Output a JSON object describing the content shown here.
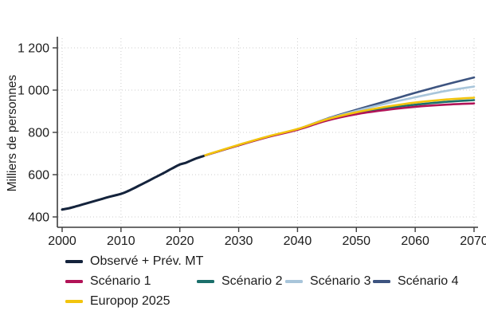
{
  "chart_data": {
    "type": "line",
    "title": "",
    "xlabel": "",
    "ylabel": "Milliers de personnes",
    "grid": true,
    "legend_position": "bottom",
    "xlim": [
      2000,
      2070
    ],
    "ylim": [
      350,
      1240
    ],
    "x_ticks": [
      {
        "value": 2000,
        "label": "2000"
      },
      {
        "value": 2010,
        "label": "2010"
      },
      {
        "value": 2020,
        "label": "2020"
      },
      {
        "value": 2030,
        "label": "2030"
      },
      {
        "value": 2040,
        "label": "2040"
      },
      {
        "value": 2050,
        "label": "2050"
      },
      {
        "value": 2060,
        "label": "2060"
      },
      {
        "value": 2070,
        "label": "2070"
      }
    ],
    "y_ticks": [
      {
        "value": 400,
        "label": "400"
      },
      {
        "value": 600,
        "label": "600"
      },
      {
        "value": 800,
        "label": "800"
      },
      {
        "value": 1000,
        "label": "1 000"
      },
      {
        "value": 1200,
        "label": "1 200"
      }
    ],
    "series": [
      {
        "name": "Observé + Prév. MT",
        "color": "#14233c",
        "stroke_width": 3,
        "x": [
          2000,
          2001,
          2002,
          2003,
          2004,
          2005,
          2006,
          2007,
          2008,
          2009,
          2010,
          2011,
          2012,
          2013,
          2014,
          2015,
          2016,
          2017,
          2018,
          2019,
          2020,
          2021,
          2022,
          2023,
          2024
        ],
        "values": [
          435,
          440,
          447,
          455,
          463,
          471,
          479,
          487,
          495,
          502,
          509,
          520,
          533,
          547,
          561,
          575,
          590,
          604,
          619,
          634,
          648,
          656,
          668,
          679,
          688
        ]
      },
      {
        "name": "Scénario 1",
        "color": "#b11357",
        "stroke_width": 2.6,
        "x": [
          2024,
          2025,
          2030,
          2035,
          2040,
          2045,
          2050,
          2055,
          2060,
          2065,
          2070
        ],
        "values": [
          688,
          697,
          739,
          778,
          812,
          856,
          886,
          906,
          921,
          931,
          937
        ]
      },
      {
        "name": "Scénario 2",
        "color": "#1b6f6b",
        "stroke_width": 2.6,
        "x": [
          2024,
          2025,
          2030,
          2035,
          2040,
          2045,
          2050,
          2055,
          2060,
          2065,
          2070
        ],
        "values": [
          688,
          697,
          739,
          779,
          814,
          859,
          891,
          914,
          931,
          944,
          953
        ]
      },
      {
        "name": "Scénario 3",
        "color": "#a8c5da",
        "stroke_width": 2.6,
        "x": [
          2024,
          2025,
          2030,
          2035,
          2040,
          2045,
          2050,
          2055,
          2060,
          2065,
          2070
        ],
        "values": [
          688,
          697,
          740,
          780,
          815,
          863,
          902,
          936,
          966,
          995,
          1017
        ]
      },
      {
        "name": "Scénario 4",
        "color": "#3d5480",
        "stroke_width": 2.6,
        "x": [
          2024,
          2025,
          2030,
          2035,
          2040,
          2045,
          2050,
          2055,
          2060,
          2065,
          2070
        ],
        "values": [
          688,
          697,
          740,
          780,
          815,
          865,
          907,
          947,
          987,
          1025,
          1060
        ]
      },
      {
        "name": "Europop 2025",
        "color": "#f2c40d",
        "stroke_width": 2.6,
        "x": [
          2024,
          2025,
          2030,
          2035,
          2040,
          2045,
          2050,
          2055,
          2060,
          2065,
          2070
        ],
        "values": [
          688,
          698,
          741,
          781,
          816,
          862,
          895,
          921,
          941,
          955,
          964
        ]
      }
    ]
  },
  "axis": {
    "y_title": "Milliers de personnes"
  },
  "legend": {
    "items": [
      {
        "label": "Observé + Prév. MT",
        "color": "#14233c"
      },
      {
        "label": "Scénario 1",
        "color": "#b11357"
      },
      {
        "label": "Scénario 2",
        "color": "#1b6f6b"
      },
      {
        "label": "Scénario 3",
        "color": "#a8c5da"
      },
      {
        "label": "Scénario 4",
        "color": "#3d5480"
      },
      {
        "label": "Europop 2025",
        "color": "#f2c40d"
      }
    ]
  },
  "colors": {
    "axis": "#3c3c3c",
    "grid": "#cdcdcd",
    "text": "#1c1c1c",
    "background": "#ffffff"
  }
}
